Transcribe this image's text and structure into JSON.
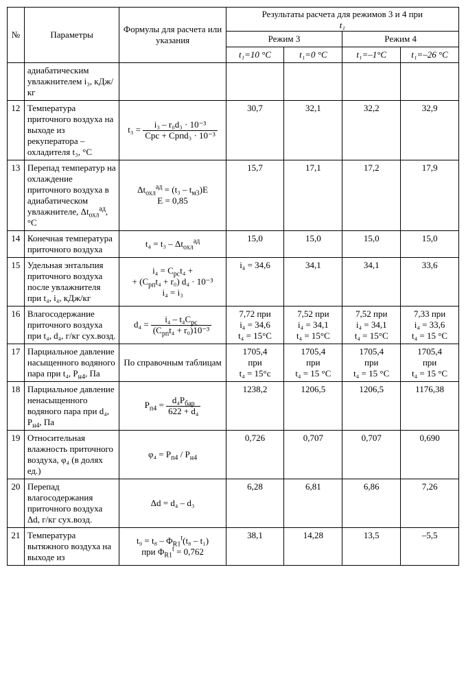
{
  "header": {
    "num": "№",
    "param": "Параметры",
    "form": "Формулы для расчета или указания",
    "results_top": "Результаты расчета для режимов 3 и 4 при",
    "results_var": "t₁",
    "mode3": "Режим 3",
    "mode4": "Режим 4",
    "c1": "t₁=10 °C",
    "c2": "t₁=0 °C",
    "c3": "t₁=–1°C",
    "c4": "t₁=–26 °C"
  },
  "rows": [
    {
      "num": "",
      "param": "адиабатическим увлажнителем i₃, кДж/кг",
      "formula": "",
      "v1": "",
      "v2": "",
      "v3": "",
      "v4": ""
    },
    {
      "num": "12",
      "param": "Температура приточного воздуха на выходе из рекуператора – охладителя t₃, °C",
      "formula": "FRAC::t₃ =::i₃ – r₀d₃ · 10⁻³::Cрс + Cрпd₃ · 10⁻³",
      "v1": "30,7",
      "v2": "32,1",
      "v3": "32,2",
      "v4": "32,9"
    },
    {
      "num": "13",
      "param": "Перепад температур на охлаждение приточного воздуха в адиабатическом увлажнителе, Δt<sub>охл</sub><sup>ад</sup>, °C",
      "formula": "Δt<sub>охл</sub><sup>ад</sup> = (t₃ – t<sub>м3</sub>)E<br>E = 0,85",
      "v1": "15,7",
      "v2": "17,1",
      "v3": "17,2",
      "v4": "17,9"
    },
    {
      "num": "14",
      "param": "Конечная температура приточного воздуха",
      "formula": "t₄ = t₃ – Δt<sub>охл</sub><sup>ад</sup>",
      "v1": "15,0",
      "v2": "15,0",
      "v3": "15,0",
      "v4": "15,0"
    },
    {
      "num": "15",
      "param": "Удельная энтальпия приточного воздуха после увлажнителя при t₄, i₄, кДж/кг",
      "formula": "i₄ = C<sub>рс</sub>t₄ +<br>+ (C<sub>рп</sub>t₄ + r₀) d₄ · 10⁻³<br>i₄ = i₃",
      "v1": "i₄ = 34,6",
      "v2": "34,1",
      "v3": "34,1",
      "v4": "33,6"
    },
    {
      "num": "16",
      "param": "Влагосодержание приточного воздуха при t₄, d₄, г/кг сух.возд.",
      "formula": "FRAC::d₄ =::i₄ – t₄C<sub>рс</sub>::(C<sub>рп</sub>t₄ + r₀)10⁻³",
      "v1": "7,72 при<br>i₄ = 34,6<br>t₄ = 15°C",
      "v2": "7,52 при<br>i₄ = 34,1<br>t₄ = 15°C",
      "v3": "7,52 при<br>i₄ = 34,1<br>t₄ = 15°C",
      "v4": "7,33 при<br>i₄ = 33,6<br>t₄ = 15 °C"
    },
    {
      "num": "17",
      "param": "Парциальное давление насыщенного водяного пара при t₄, P<sub>н4</sub>, Па",
      "formula": "По справочным таблицам",
      "v1": "1705,4<br>при<br>t₄ = 15°с",
      "v2": "1705,4<br>при<br>t₄ = 15 °C",
      "v3": "1705,4<br>при<br>t₄ = 15 °C",
      "v4": "1705,4<br>при<br>t₄ = 15 °C"
    },
    {
      "num": "18",
      "param": "Парциальное давление ненасыщенного водяного пара при d₄, P<sub>н4</sub>, Па",
      "formula": "FRAC::P<sub>п4</sub> =::d₄P<sub>бар</sub>::622 + d₄",
      "v1": "1238,2",
      "v2": "1206,5",
      "v3": "1206,5",
      "v4": "1176,38"
    },
    {
      "num": "19",
      "param": "Относительная влажность приточного воздуха, φ₄ (в долях ед.)",
      "formula": "φ₄ = P<sub>п4</sub> / P<sub>н4</sub>",
      "v1": "0,726",
      "v2": "0,707",
      "v3": "0,707",
      "v4": "0,690"
    },
    {
      "num": "20",
      "param": "Перепад влагосодержания приточного воздуха Δd, г/кг сух.возд.",
      "formula": "Δd = d₄ – d₃",
      "v1": "6,28",
      "v2": "6,81",
      "v3": "6,86",
      "v4": "7,26"
    },
    {
      "num": "21",
      "param": "Температура вытяжного воздуха на выходе из",
      "formula": "t₉ = t₈ – Φ<sub>R1</sub><sup>t</sup>(t₈ – t₁)<br>при Φ<sub>R1</sub><sup>t</sup> = 0,762",
      "v1": "38,1",
      "v2": "14,28",
      "v3": "13,5",
      "v4": "–5,5"
    }
  ]
}
